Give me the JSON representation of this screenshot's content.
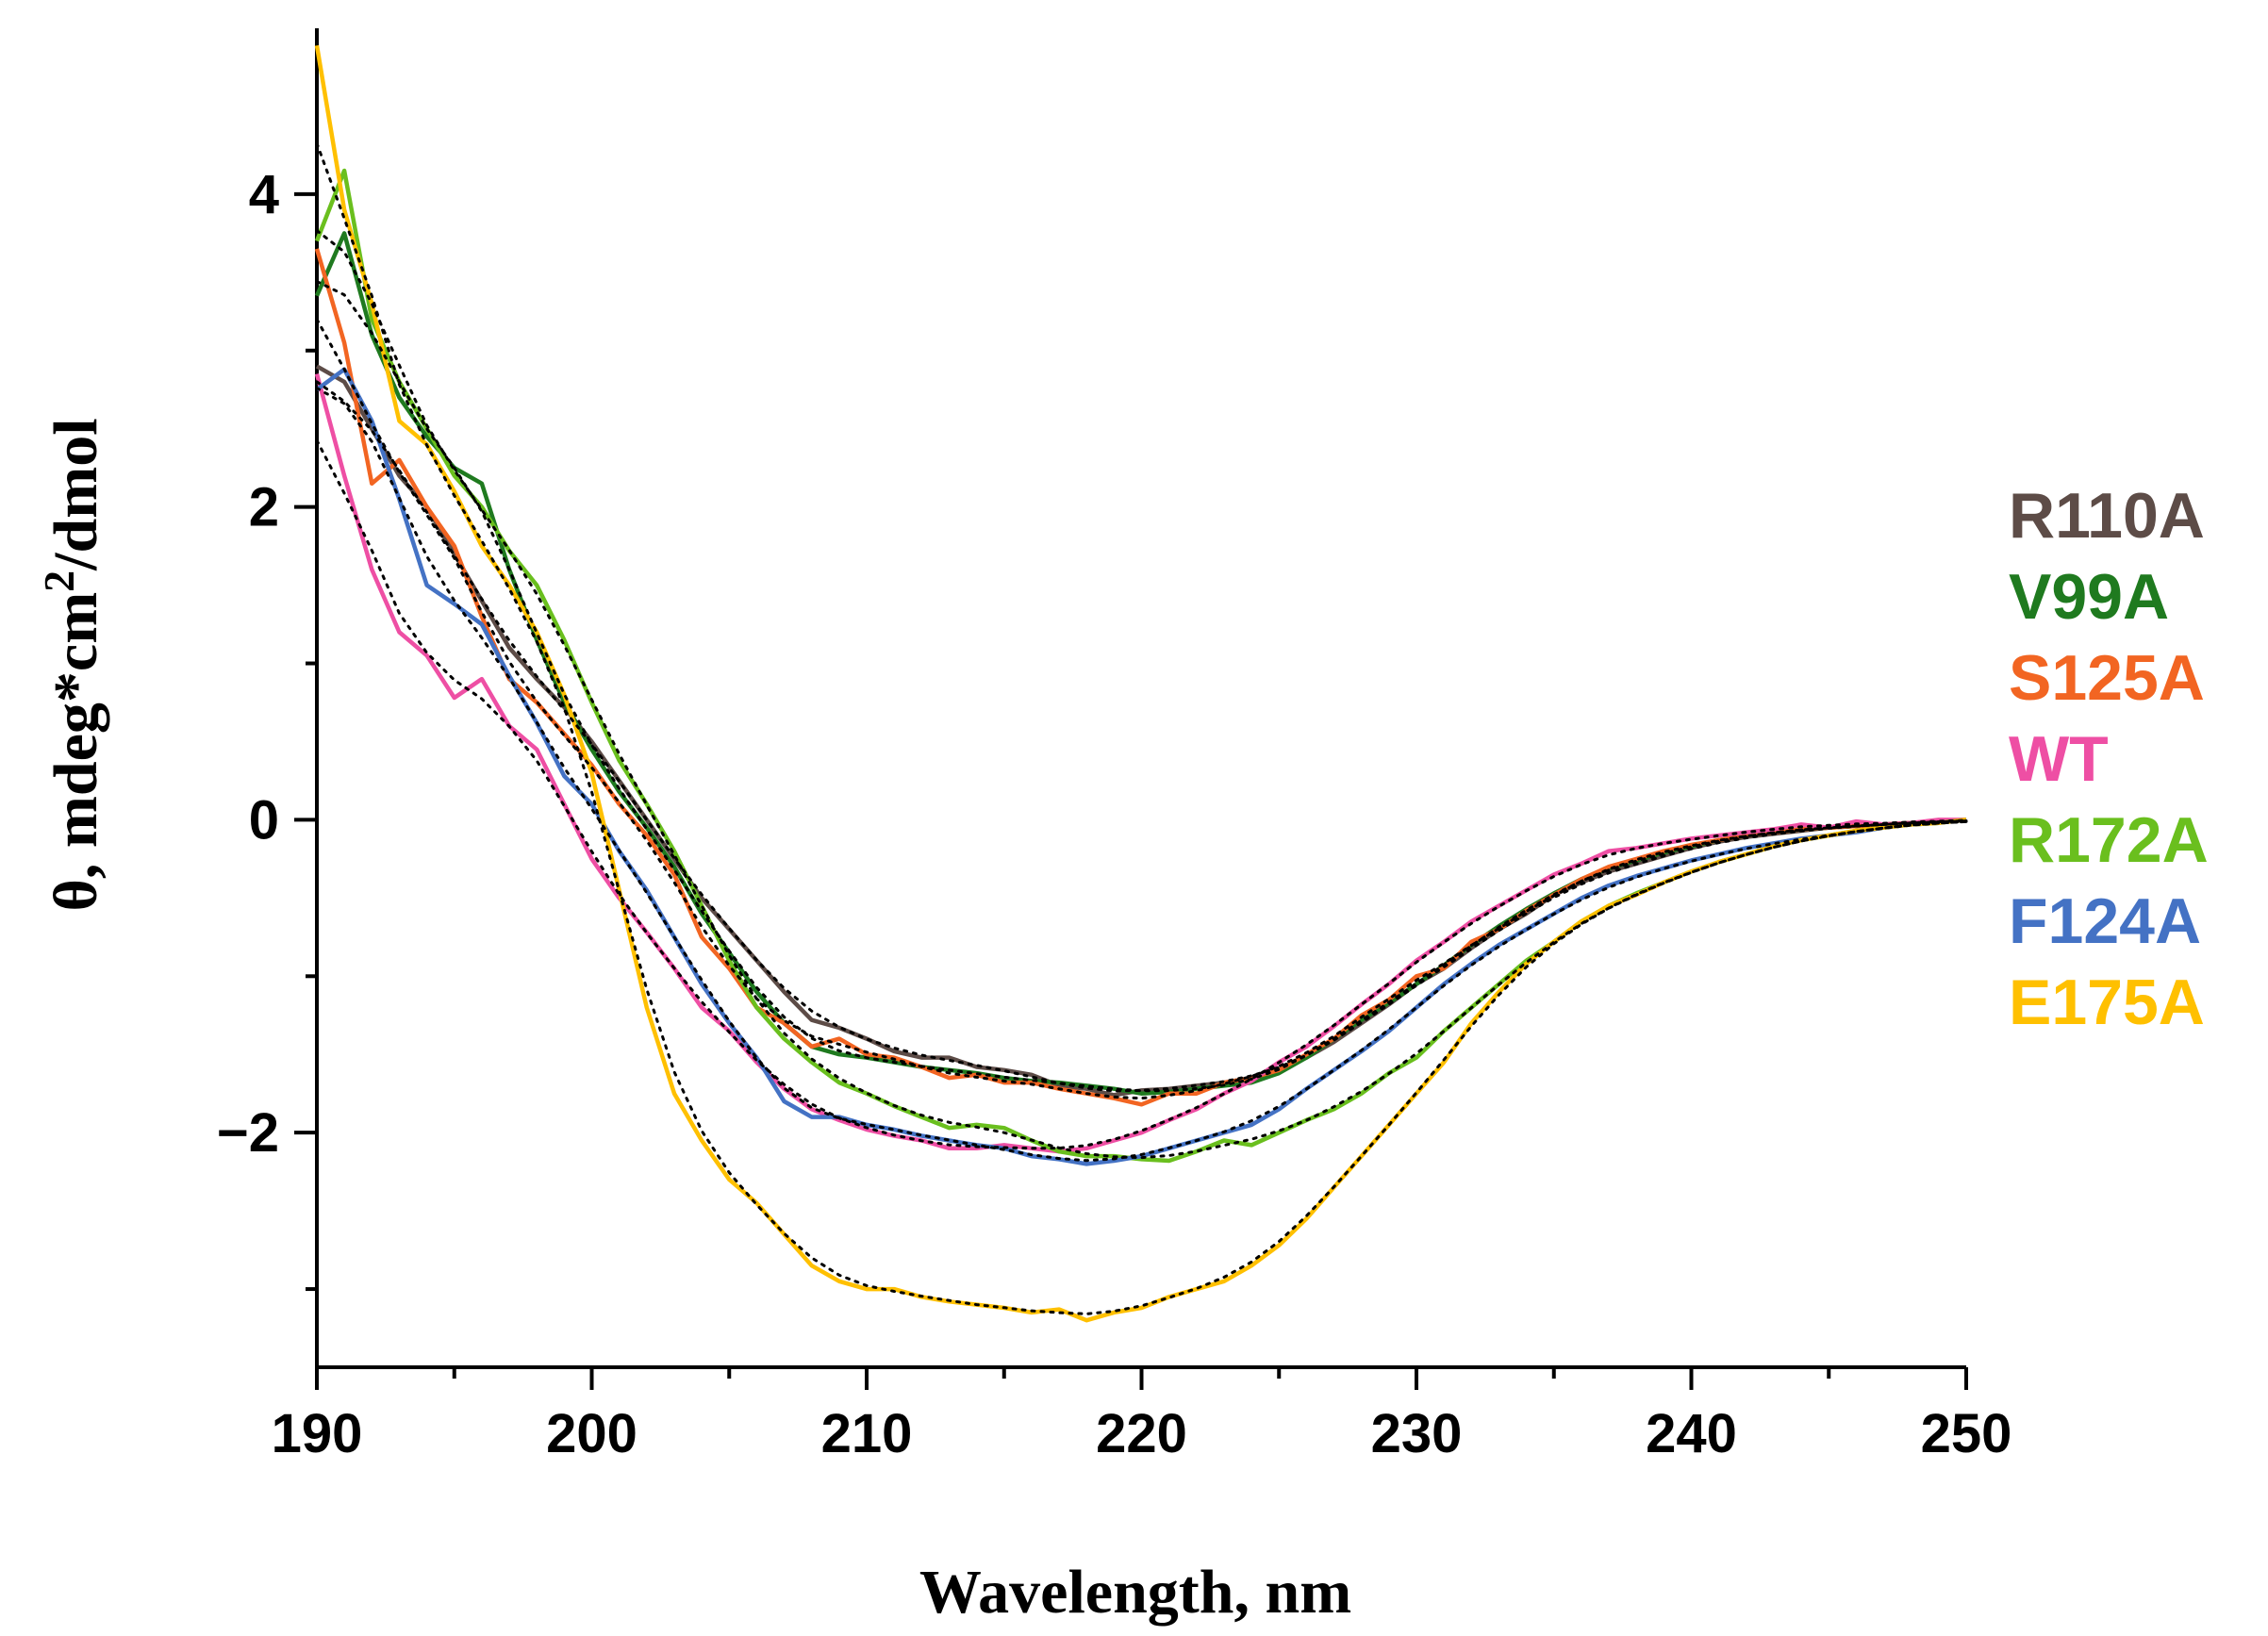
{
  "chart_data": {
    "type": "line",
    "title": "",
    "xlabel": "Wavelength, nm",
    "ylabel_parts": [
      "θ, mdeg*cm",
      "2",
      "/dmol"
    ],
    "xlim": [
      190,
      250
    ],
    "ylim": [
      -3.5,
      5
    ],
    "xticks": [
      190,
      200,
      210,
      220,
      230,
      240,
      250
    ],
    "xticks_minor": [
      195,
      205,
      215,
      225,
      235,
      245
    ],
    "yticks": [
      4,
      2,
      0,
      -2
    ],
    "ytick_labels": [
      "4",
      "2",
      "0",
      "−2"
    ],
    "yticks_minor": [
      3,
      1,
      -1,
      -3
    ],
    "grid": false,
    "legend_position": "right",
    "fit_style": "black dotted",
    "series": [
      {
        "name": "R110A",
        "color": "#5d4c47",
        "x": [
          190,
          191,
          192,
          193,
          194,
          195,
          196,
          197,
          198,
          199,
          200,
          201,
          202,
          203,
          204,
          205,
          206,
          207,
          208,
          209,
          210,
          211,
          212,
          213,
          214,
          215,
          216,
          217,
          218,
          219,
          220,
          221,
          222,
          223,
          224,
          225,
          226,
          227,
          228,
          229,
          230,
          231,
          232,
          233,
          234,
          235,
          236,
          237,
          238,
          239,
          240,
          241,
          242,
          243,
          244,
          245,
          246,
          247,
          248,
          249,
          250
        ],
        "values": [
          2.9,
          2.8,
          2.5,
          2.2,
          2.0,
          1.7,
          1.4,
          1.1,
          0.9,
          0.72,
          0.5,
          0.25,
          0.0,
          -0.25,
          -0.5,
          -0.7,
          -0.9,
          -1.1,
          -1.28,
          -1.33,
          -1.4,
          -1.48,
          -1.52,
          -1.52,
          -1.58,
          -1.6,
          -1.63,
          -1.7,
          -1.72,
          -1.76,
          -1.73,
          -1.72,
          -1.7,
          -1.68,
          -1.65,
          -1.6,
          -1.52,
          -1.42,
          -1.3,
          -1.18,
          -1.05,
          -0.95,
          -0.82,
          -0.7,
          -0.6,
          -0.48,
          -0.4,
          -0.33,
          -0.28,
          -0.23,
          -0.18,
          -0.14,
          -0.11,
          -0.09,
          -0.07,
          -0.05,
          -0.04,
          -0.03,
          -0.02,
          -0.01,
          0.0
        ]
      },
      {
        "name": "V99A",
        "color": "#1f7a1f",
        "x": [
          190,
          191,
          192,
          193,
          194,
          195,
          196,
          197,
          198,
          199,
          200,
          201,
          202,
          203,
          204,
          205,
          206,
          207,
          208,
          209,
          210,
          211,
          212,
          213,
          214,
          215,
          216,
          217,
          218,
          219,
          220,
          221,
          222,
          223,
          224,
          225,
          226,
          227,
          228,
          229,
          230,
          231,
          232,
          233,
          234,
          235,
          236,
          237,
          238,
          239,
          240,
          241,
          242,
          243,
          244,
          245,
          246,
          247,
          248,
          249,
          250
        ],
        "values": [
          3.35,
          3.75,
          3.1,
          2.7,
          2.45,
          2.25,
          2.15,
          1.6,
          1.15,
          0.75,
          0.45,
          0.18,
          -0.05,
          -0.3,
          -0.6,
          -0.85,
          -1.1,
          -1.3,
          -1.45,
          -1.5,
          -1.52,
          -1.55,
          -1.58,
          -1.6,
          -1.62,
          -1.65,
          -1.67,
          -1.68,
          -1.7,
          -1.72,
          -1.75,
          -1.74,
          -1.72,
          -1.7,
          -1.68,
          -1.62,
          -1.52,
          -1.4,
          -1.28,
          -1.17,
          -1.05,
          -0.93,
          -0.8,
          -0.68,
          -0.57,
          -0.47,
          -0.38,
          -0.31,
          -0.26,
          -0.21,
          -0.17,
          -0.13,
          -0.1,
          -0.08,
          -0.06,
          -0.05,
          -0.04,
          -0.03,
          -0.02,
          -0.01,
          0.0
        ]
      },
      {
        "name": "S125A",
        "color": "#f26522",
        "x": [
          190,
          191,
          192,
          193,
          194,
          195,
          196,
          197,
          198,
          199,
          200,
          201,
          202,
          203,
          204,
          205,
          206,
          207,
          208,
          209,
          210,
          211,
          212,
          213,
          214,
          215,
          216,
          217,
          218,
          219,
          220,
          221,
          222,
          223,
          224,
          225,
          226,
          227,
          228,
          229,
          230,
          231,
          232,
          233,
          234,
          235,
          236,
          237,
          238,
          239,
          240,
          241,
          242,
          243,
          244,
          245,
          246,
          247,
          248,
          249,
          250
        ],
        "values": [
          3.65,
          3.05,
          2.15,
          2.3,
          2.0,
          1.75,
          1.3,
          0.9,
          0.75,
          0.55,
          0.35,
          0.1,
          -0.1,
          -0.35,
          -0.75,
          -0.95,
          -1.2,
          -1.3,
          -1.45,
          -1.4,
          -1.5,
          -1.52,
          -1.58,
          -1.65,
          -1.63,
          -1.68,
          -1.68,
          -1.72,
          -1.75,
          -1.78,
          -1.82,
          -1.75,
          -1.75,
          -1.68,
          -1.65,
          -1.6,
          -1.5,
          -1.4,
          -1.25,
          -1.15,
          -1.0,
          -0.95,
          -0.78,
          -0.7,
          -0.58,
          -0.48,
          -0.38,
          -0.3,
          -0.25,
          -0.2,
          -0.16,
          -0.13,
          -0.1,
          -0.08,
          -0.06,
          -0.05,
          -0.04,
          -0.03,
          -0.02,
          -0.01,
          0.0
        ]
      },
      {
        "name": "WT",
        "color": "#ee4fa4",
        "x": [
          190,
          191,
          192,
          193,
          194,
          195,
          196,
          197,
          198,
          199,
          200,
          201,
          202,
          203,
          204,
          205,
          206,
          207,
          208,
          209,
          210,
          211,
          212,
          213,
          214,
          215,
          216,
          217,
          218,
          219,
          220,
          221,
          222,
          223,
          224,
          225,
          226,
          227,
          228,
          229,
          230,
          231,
          232,
          233,
          234,
          235,
          236,
          237,
          238,
          239,
          240,
          241,
          242,
          243,
          244,
          245,
          246,
          247,
          248,
          249,
          250
        ],
        "values": [
          2.85,
          2.2,
          1.6,
          1.2,
          1.05,
          0.78,
          0.9,
          0.6,
          0.45,
          0.1,
          -0.25,
          -0.5,
          -0.72,
          -0.95,
          -1.2,
          -1.35,
          -1.55,
          -1.72,
          -1.85,
          -1.92,
          -1.98,
          -2.02,
          -2.05,
          -2.1,
          -2.1,
          -2.08,
          -2.1,
          -2.12,
          -2.1,
          -2.05,
          -2.0,
          -1.92,
          -1.85,
          -1.75,
          -1.67,
          -1.55,
          -1.45,
          -1.32,
          -1.18,
          -1.05,
          -0.9,
          -0.78,
          -0.65,
          -0.55,
          -0.45,
          -0.35,
          -0.28,
          -0.2,
          -0.18,
          -0.15,
          -0.12,
          -0.1,
          -0.08,
          -0.06,
          -0.03,
          -0.05,
          -0.01,
          -0.03,
          -0.02,
          0.0,
          0.0
        ]
      },
      {
        "name": "R172A",
        "color": "#6abf1e",
        "x": [
          190,
          191,
          192,
          193,
          194,
          195,
          196,
          197,
          198,
          199,
          200,
          201,
          202,
          203,
          204,
          205,
          206,
          207,
          208,
          209,
          210,
          211,
          212,
          213,
          214,
          215,
          216,
          217,
          218,
          219,
          220,
          221,
          222,
          223,
          224,
          225,
          226,
          227,
          228,
          229,
          230,
          231,
          232,
          233,
          234,
          235,
          236,
          237,
          238,
          239,
          240,
          241,
          242,
          243,
          244,
          245,
          246,
          247,
          248,
          249,
          250
        ],
        "values": [
          3.7,
          4.15,
          3.2,
          2.8,
          2.5,
          2.2,
          2.0,
          1.72,
          1.5,
          1.15,
          0.75,
          0.38,
          0.1,
          -0.2,
          -0.55,
          -0.9,
          -1.2,
          -1.4,
          -1.55,
          -1.68,
          -1.75,
          -1.83,
          -1.9,
          -1.97,
          -1.95,
          -1.97,
          -2.05,
          -2.12,
          -2.15,
          -2.15,
          -2.17,
          -2.18,
          -2.12,
          -2.05,
          -2.08,
          -2.0,
          -1.92,
          -1.85,
          -1.75,
          -1.62,
          -1.52,
          -1.35,
          -1.2,
          -1.05,
          -0.9,
          -0.78,
          -0.65,
          -0.55,
          -0.47,
          -0.4,
          -0.33,
          -0.27,
          -0.22,
          -0.17,
          -0.13,
          -0.1,
          -0.07,
          -0.05,
          -0.03,
          -0.02,
          0.0
        ]
      },
      {
        "name": "F124A",
        "color": "#4472c4",
        "x": [
          190,
          191,
          192,
          193,
          194,
          195,
          196,
          197,
          198,
          199,
          200,
          201,
          202,
          203,
          204,
          205,
          206,
          207,
          208,
          209,
          210,
          211,
          212,
          213,
          214,
          215,
          216,
          217,
          218,
          219,
          220,
          221,
          222,
          223,
          224,
          225,
          226,
          227,
          228,
          229,
          230,
          231,
          232,
          233,
          234,
          235,
          236,
          237,
          238,
          239,
          240,
          241,
          242,
          243,
          244,
          245,
          246,
          247,
          248,
          249,
          250
        ],
        "values": [
          2.75,
          2.88,
          2.55,
          2.05,
          1.5,
          1.38,
          1.25,
          0.92,
          0.62,
          0.28,
          0.1,
          -0.2,
          -0.45,
          -0.75,
          -1.05,
          -1.3,
          -1.52,
          -1.8,
          -1.9,
          -1.9,
          -1.95,
          -1.98,
          -2.02,
          -2.05,
          -2.08,
          -2.1,
          -2.15,
          -2.17,
          -2.2,
          -2.18,
          -2.15,
          -2.1,
          -2.05,
          -2.0,
          -1.95,
          -1.85,
          -1.72,
          -1.6,
          -1.48,
          -1.35,
          -1.2,
          -1.05,
          -0.92,
          -0.8,
          -0.7,
          -0.6,
          -0.5,
          -0.42,
          -0.36,
          -0.31,
          -0.26,
          -0.22,
          -0.18,
          -0.15,
          -0.12,
          -0.1,
          -0.08,
          -0.05,
          -0.03,
          -0.02,
          0.0
        ]
      },
      {
        "name": "E175A",
        "color": "#ffc000",
        "x": [
          190,
          191,
          192,
          193,
          194,
          195,
          196,
          197,
          198,
          199,
          200,
          201,
          202,
          203,
          204,
          205,
          206,
          207,
          208,
          209,
          210,
          211,
          212,
          213,
          214,
          215,
          216,
          217,
          218,
          219,
          220,
          221,
          222,
          223,
          224,
          225,
          226,
          227,
          228,
          229,
          230,
          231,
          232,
          233,
          234,
          235,
          236,
          237,
          238,
          239,
          240,
          241,
          242,
          243,
          244,
          245,
          246,
          247,
          248,
          249,
          250
        ],
        "values": [
          4.95,
          3.9,
          3.3,
          2.55,
          2.4,
          2.1,
          1.75,
          1.5,
          1.2,
          0.8,
          0.3,
          -0.45,
          -1.2,
          -1.75,
          -2.05,
          -2.3,
          -2.45,
          -2.65,
          -2.85,
          -2.95,
          -3.0,
          -3.0,
          -3.05,
          -3.08,
          -3.1,
          -3.12,
          -3.15,
          -3.13,
          -3.2,
          -3.15,
          -3.12,
          -3.05,
          -3.0,
          -2.95,
          -2.85,
          -2.72,
          -2.55,
          -2.35,
          -2.15,
          -1.95,
          -1.75,
          -1.55,
          -1.3,
          -1.1,
          -0.92,
          -0.78,
          -0.65,
          -0.55,
          -0.48,
          -0.4,
          -0.33,
          -0.27,
          -0.22,
          -0.17,
          -0.13,
          -0.1,
          -0.07,
          -0.05,
          -0.03,
          -0.02,
          0.0
        ]
      }
    ]
  }
}
